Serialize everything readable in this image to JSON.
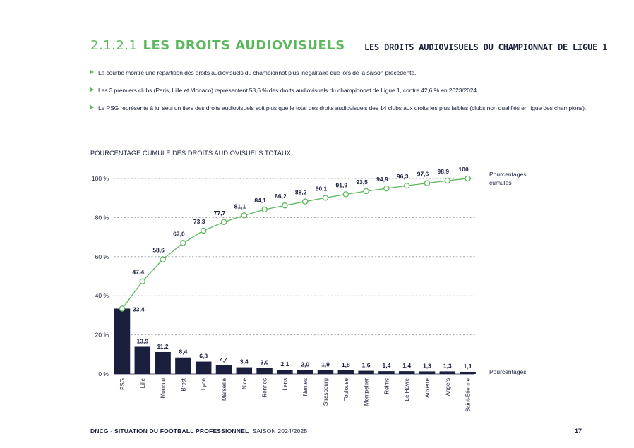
{
  "header": {
    "section_number": "2.1.2.1",
    "section_title": "LES DROITS AUDIOVISUELS",
    "chart_heading": "LES DROITS AUDIOVISUELS DU CHAMPIONNAT DE LIGUE 1"
  },
  "bullets": [
    "La courbe montre une répartition des droits audiovisuels du championnat plus inégalitaire que lors de la saison précédente.",
    "Les 3 premiers clubs (Paris, Lille et Monaco) représentent 58,6 % des droits audiovisuels du championnat de Ligue 1, contre 42,6 % en 2023/2024.",
    "Le PSG représente à lui seul un tiers des droits audiovisuels soit plus que le total des droits audiovisuels des 14 clubs aux droits les plus faibles (clubs non qualifiés en ligue des champions)."
  ],
  "chart_subtitle": "POURCENTAGE CUMULÉ DES DROITS AUDIOVISUELS TOTAUX",
  "chart_data": {
    "type": "bar",
    "title": "POURCENTAGE CUMULÉ DES DROITS AUDIOVISUELS TOTAUX",
    "categories": [
      "PSG",
      "Lille",
      "Monaco",
      "Brest",
      "Lyon",
      "Marseille",
      "Nice",
      "Rennes",
      "Lens",
      "Nantes",
      "Strasbourg",
      "Toulouse",
      "Montpellier",
      "Reims",
      "Le Havre",
      "Auxerre",
      "Angers",
      "Saint-Étienne"
    ],
    "series": [
      {
        "name": "Pourcentages",
        "type": "bar",
        "values": [
          33.4,
          13.9,
          11.2,
          8.4,
          6.3,
          4.4,
          3.4,
          3.0,
          2.1,
          2.0,
          1.9,
          1.8,
          1.6,
          1.4,
          1.4,
          1.3,
          1.3,
          1.1
        ],
        "labels": [
          "33,4",
          "13,9",
          "11,2",
          "8,4",
          "6,3",
          "4,4",
          "3,4",
          "3,0",
          "2,1",
          "2,0",
          "1,9",
          "1,8",
          "1,6",
          "1,4",
          "1,4",
          "1,3",
          "1,3",
          "1,1"
        ]
      },
      {
        "name": "Pourcentages cumulés",
        "type": "line",
        "values": [
          33.4,
          47.4,
          58.6,
          67.0,
          73.3,
          77.7,
          81.1,
          84.1,
          86.2,
          88.2,
          90.1,
          91.9,
          93.5,
          94.9,
          96.3,
          97.6,
          98.9,
          100
        ],
        "labels": [
          "33,4",
          "47,4",
          "58,6",
          "67,0",
          "73,3",
          "77,7",
          "81,1",
          "84,1",
          "86,2",
          "88,2",
          "90,1",
          "91,9",
          "93,5",
          "94,9",
          "96,3",
          "97,6",
          "98,9",
          "100"
        ]
      }
    ],
    "legend": {
      "line_line1": "Pourcentages",
      "line_line2": "cumulés",
      "bar": "Pourcentages"
    },
    "yticks": [
      0,
      20,
      40,
      60,
      80,
      100
    ],
    "ytick_labels": [
      "0 %",
      "20 %",
      "40 %",
      "60 %",
      "80 %",
      "100 %"
    ],
    "ylim": [
      0,
      100
    ],
    "grid": true,
    "colors": {
      "bar": "#1a1f3d",
      "line": "#5cb85c",
      "grid": "#9aa0a8"
    }
  },
  "footer": {
    "left_bold": "DNCG - SITUATION DU FOOTBALL PROFESSIONNEL",
    "left_regular": "SAISON 2024/2025",
    "page_number": "17"
  }
}
